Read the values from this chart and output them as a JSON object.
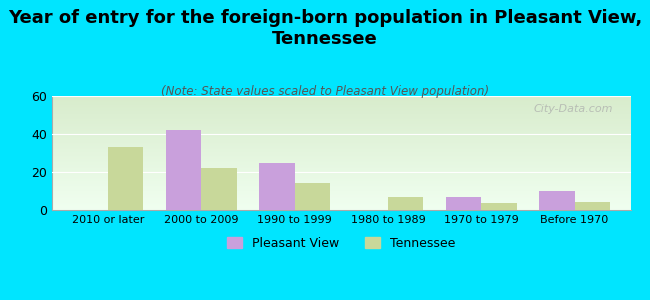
{
  "title": "Year of entry for the foreign-born population in Pleasant View,\nTennessee",
  "subtitle": "(Note: State values scaled to Pleasant View population)",
  "categories": [
    "2010 or later",
    "2000 to 2009",
    "1990 to 1999",
    "1980 to 1989",
    "1970 to 1979",
    "Before 1970"
  ],
  "pleasant_view": [
    0,
    42,
    25,
    0,
    7,
    10
  ],
  "tennessee": [
    33,
    22,
    14,
    7,
    3.5,
    4
  ],
  "pleasant_view_color": "#c9a0dc",
  "tennessee_color": "#c8d89a",
  "background_color": "#00e5ff",
  "ylim": [
    0,
    60
  ],
  "yticks": [
    0,
    20,
    40,
    60
  ],
  "bar_width": 0.38,
  "title_fontsize": 13,
  "subtitle_fontsize": 8.5,
  "legend_label_pv": "Pleasant View",
  "legend_label_tn": "Tennessee",
  "watermark": "City-Data.com"
}
